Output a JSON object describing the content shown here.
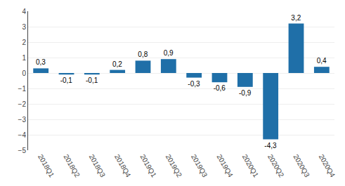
{
  "chart_data": {
    "type": "bar",
    "categories": [
      "2018Q1",
      "2018Q2",
      "2018Q3",
      "2018Q4",
      "2019Q1",
      "2019Q2",
      "2019Q3",
      "2019Q4",
      "2020Q1",
      "2020Q2",
      "2020Q3",
      "2020Q4"
    ],
    "values": [
      0.3,
      -0.1,
      -0.1,
      0.2,
      0.8,
      0.9,
      -0.3,
      -0.6,
      -0.9,
      -4.3,
      3.2,
      0.4
    ],
    "value_labels": [
      "0,3",
      "-0,1",
      "-0,1",
      "0,2",
      "0,8",
      "0,9",
      "-0,3",
      "-0,6",
      "-0,9",
      "-4,3",
      "3,2",
      "0,4"
    ],
    "color": "#1F6FA8",
    "ylim": [
      -5,
      4
    ],
    "yticks": [
      -5,
      -4,
      -3,
      -2,
      -1,
      0,
      1,
      2,
      3,
      4
    ],
    "grid": true,
    "data_labels": true
  }
}
